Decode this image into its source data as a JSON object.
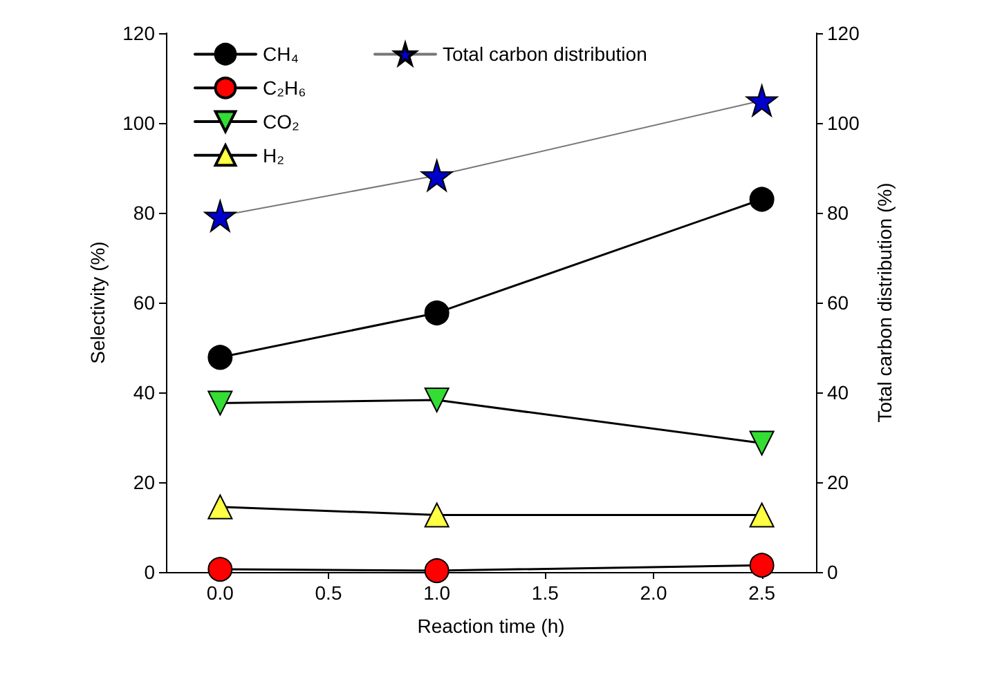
{
  "chart_data": {
    "type": "line",
    "xlabel": "Reaction time (h)",
    "ylabel": "Selectivity (%)",
    "y2label": "Total carbon distribution (%)",
    "x": [
      0,
      1,
      2.5
    ],
    "xlim": [
      -0.25,
      2.75
    ],
    "xticks": [
      {
        "value": 0,
        "label": "0.0"
      },
      {
        "value": 0.5,
        "label": "0.5"
      },
      {
        "value": 1,
        "label": "1.0"
      },
      {
        "value": 1.5,
        "label": "1.5"
      },
      {
        "value": 2,
        "label": "2.0"
      },
      {
        "value": 2.5,
        "label": "2.5"
      }
    ],
    "ylim": [
      0,
      120
    ],
    "yticks": [
      0,
      20,
      40,
      60,
      80,
      100,
      120
    ],
    "y2lim": [
      0,
      120
    ],
    "y2ticks": [
      0,
      20,
      40,
      60,
      80,
      100,
      120
    ],
    "legend": "top left",
    "grid": false,
    "series": [
      {
        "name": "CH₄",
        "color": "#000000",
        "marker": "circle",
        "values": [
          47.8,
          57.7,
          83
        ]
      },
      {
        "name": "C₂H₆",
        "color": "#ff0000",
        "marker": "circle",
        "values": [
          0.6,
          0.3,
          1.5
        ]
      },
      {
        "name": "CO₂",
        "color": "#33dd33",
        "marker": "triangle-down",
        "values": [
          37.6,
          38.3,
          28.7
        ]
      },
      {
        "name": "H₂",
        "color": "#ffff44",
        "marker": "triangle",
        "values": [
          14.5,
          12.7,
          12.7
        ]
      },
      {
        "name": "Total carbon distribution",
        "color": "#0000cc",
        "marker": "star",
        "axis": "y2",
        "values": [
          79.3,
          88.3,
          105
        ]
      }
    ]
  }
}
